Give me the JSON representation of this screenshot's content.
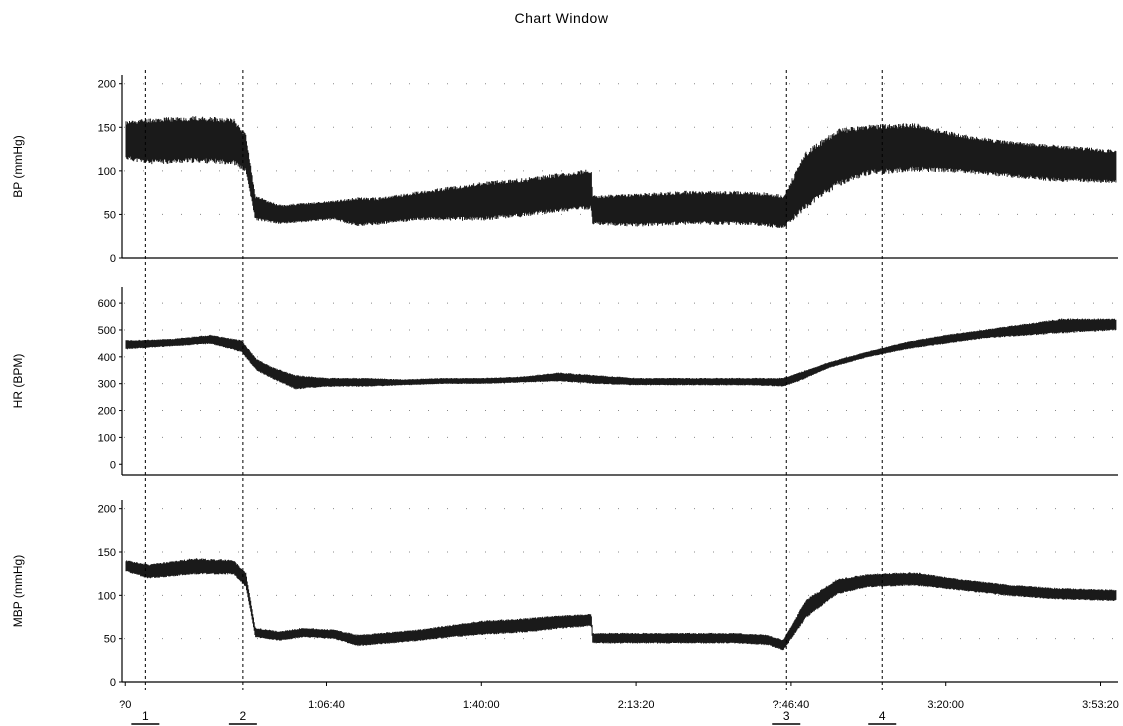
{
  "window_title": "Chart Window",
  "chart_data": {
    "type": "line",
    "x_unit": "h:mm:ss",
    "x_range_seconds": [
      1410,
      14200
    ],
    "x_tick_labels": [
      {
        "label": "?0",
        "t": 1400
      },
      {
        "label": "1:06:40",
        "t": 4000
      },
      {
        "label": "1:40:00",
        "t": 6000
      },
      {
        "label": "2:13:20",
        "t": 8000
      },
      {
        "label": "?:46:40",
        "t": 10000
      },
      {
        "label": "3:20:00",
        "t": 12000
      },
      {
        "label": "3:53:20",
        "t": 14000
      }
    ],
    "markers": [
      {
        "label": "1",
        "t": 1660
      },
      {
        "label": "2",
        "t": 2920
      },
      {
        "label": "3",
        "t": 9940
      },
      {
        "label": "4",
        "t": 11180
      }
    ],
    "panels": [
      {
        "ylabel": "BP (mmHg)",
        "ylim": [
          0,
          210
        ],
        "yticks": [
          0,
          50,
          100,
          150,
          200
        ],
        "band": {
          "t": [
            1410,
            1700,
            2300,
            2800,
            2960,
            3080,
            3400,
            3700,
            4100,
            4400,
            4700,
            5200,
            5600,
            6000,
            6600,
            7000,
            7420,
            7440,
            8000,
            8600,
            9300,
            9700,
            9900,
            10200,
            10600,
            11000,
            11600,
            12200,
            12800,
            13400,
            14200
          ],
          "low": [
            115,
            110,
            112,
            110,
            100,
            45,
            40,
            42,
            45,
            38,
            40,
            45,
            45,
            45,
            50,
            55,
            58,
            40,
            38,
            40,
            40,
            38,
            35,
            60,
            85,
            98,
            102,
            100,
            95,
            90,
            88
          ],
          "high": [
            155,
            158,
            160,
            158,
            140,
            70,
            60,
            62,
            65,
            68,
            68,
            75,
            80,
            85,
            90,
            95,
            100,
            70,
            72,
            75,
            75,
            73,
            70,
            120,
            145,
            150,
            152,
            140,
            132,
            128,
            122
          ]
        }
      },
      {
        "ylabel": "HR (BPM)",
        "ylim": [
          -40,
          660
        ],
        "yticks": [
          0,
          100,
          200,
          300,
          400,
          500,
          600
        ],
        "band": {
          "t": [
            1410,
            2000,
            2500,
            2900,
            3100,
            3300,
            3600,
            4000,
            4500,
            5000,
            5500,
            6000,
            6500,
            7000,
            7500,
            8000,
            8500,
            9000,
            9500,
            9900,
            10100,
            10500,
            11000,
            11500,
            12000,
            12500,
            13000,
            13500,
            14200
          ],
          "low": [
            430,
            440,
            450,
            420,
            350,
            320,
            280,
            290,
            290,
            295,
            300,
            300,
            305,
            310,
            300,
            295,
            295,
            295,
            295,
            290,
            310,
            360,
            400,
            430,
            450,
            470,
            480,
            490,
            500
          ],
          "high": [
            460,
            465,
            480,
            460,
            390,
            360,
            330,
            320,
            320,
            315,
            320,
            320,
            325,
            340,
            330,
            320,
            320,
            320,
            320,
            320,
            340,
            380,
            420,
            455,
            480,
            500,
            520,
            540,
            540
          ]
        }
      },
      {
        "ylabel": "MBP (mmHg)",
        "ylim": [
          0,
          210
        ],
        "yticks": [
          0,
          50,
          100,
          150,
          200
        ],
        "band": {
          "t": [
            1410,
            1700,
            2300,
            2800,
            2960,
            3080,
            3400,
            3700,
            4100,
            4400,
            4700,
            5200,
            5600,
            6000,
            6600,
            7000,
            7420,
            7440,
            8000,
            8600,
            9300,
            9700,
            9900,
            10200,
            10600,
            11000,
            11600,
            12200,
            12800,
            13400,
            14200
          ],
          "low": [
            128,
            120,
            125,
            125,
            110,
            52,
            48,
            52,
            50,
            42,
            44,
            48,
            52,
            55,
            58,
            62,
            65,
            45,
            45,
            45,
            45,
            43,
            37,
            75,
            102,
            110,
            112,
            106,
            100,
            96,
            94
          ],
          "high": [
            140,
            135,
            142,
            140,
            125,
            62,
            58,
            62,
            60,
            54,
            56,
            60,
            65,
            70,
            73,
            76,
            78,
            56,
            56,
            56,
            56,
            54,
            48,
            95,
            118,
            124,
            126,
            118,
            112,
            108,
            106
          ]
        }
      }
    ]
  }
}
